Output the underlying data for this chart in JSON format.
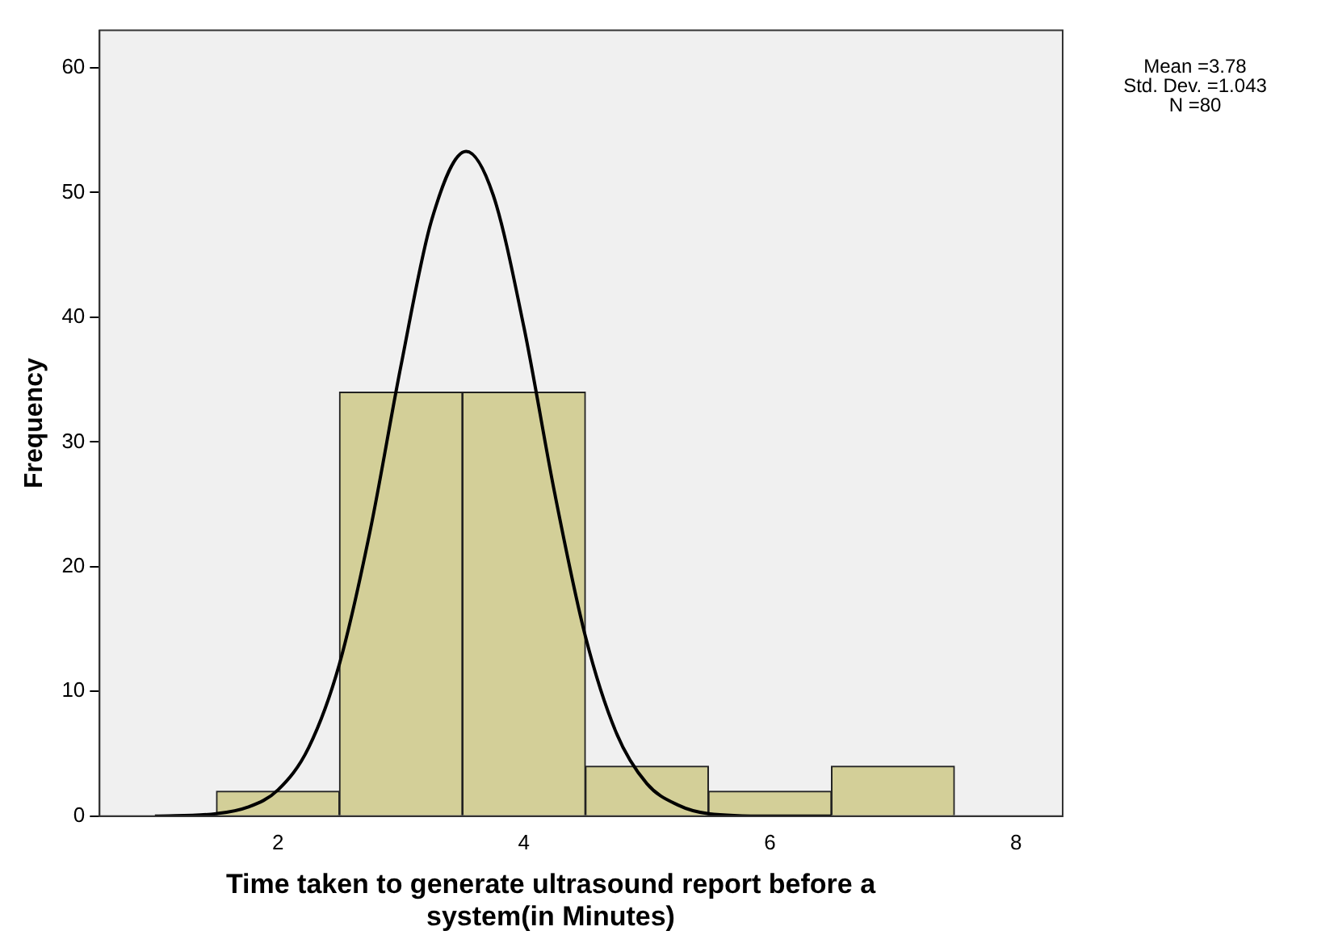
{
  "chart_data": {
    "type": "histogram",
    "xlabel": "Time taken to generate ultrasound report before a system(in Minutes)",
    "ylabel": "Frequency",
    "annotations": [
      "Mean =3.78",
      "Std. Dev. =1.043",
      "N =80"
    ],
    "series": [
      {
        "type": "histogram",
        "color": "#d3cf98",
        "bins": [
          1.5,
          2.5,
          3.5,
          4.5,
          5.5,
          6.5,
          7.5
        ],
        "values": [
          2,
          34,
          34,
          4,
          2,
          4
        ]
      },
      {
        "type": "line",
        "color": "#000000",
        "x": [
          1.0,
          1.5,
          1.75,
          2.0,
          2.25,
          2.5,
          2.75,
          3.0,
          3.25,
          3.53,
          3.75,
          4.0,
          4.25,
          4.5,
          4.75,
          5.0,
          5.25,
          5.5,
          6.0,
          6.5
        ],
        "values": [
          0.0,
          0.2,
          0.7,
          2.1,
          5.5,
          12.2,
          22.9,
          36.1,
          47.8,
          53.3,
          49.8,
          39.2,
          25.9,
          14.4,
          6.7,
          2.6,
          0.9,
          0.2,
          0.0,
          0.0
        ]
      }
    ],
    "xlim": [
      0.55,
      8.38
    ],
    "xticks": [
      2,
      4,
      6,
      8
    ],
    "ylim": [
      0,
      63
    ],
    "yticks": [
      0,
      10,
      20,
      30,
      40,
      50,
      60
    ],
    "grid": false,
    "legend": false
  }
}
